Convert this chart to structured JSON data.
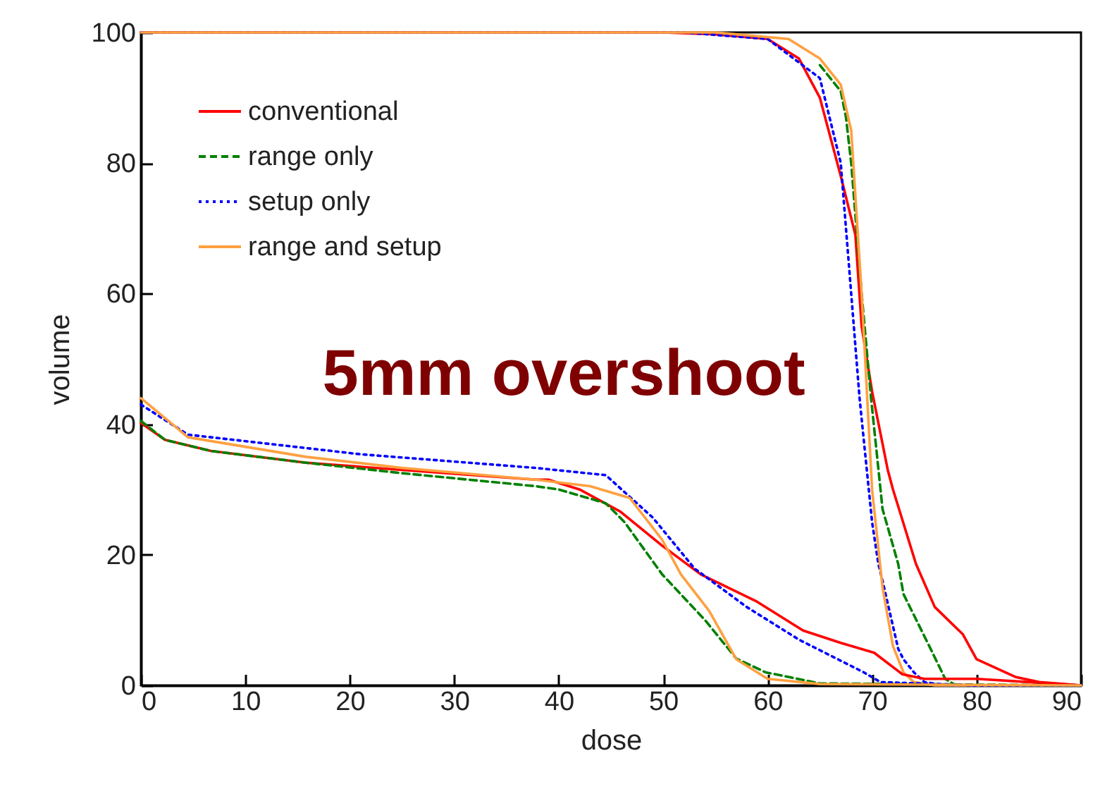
{
  "chart_data": {
    "type": "line",
    "xlabel": "dose",
    "ylabel": "volume",
    "xlim": [
      0,
      90
    ],
    "ylim": [
      0,
      100
    ],
    "xticks": [
      0,
      10,
      20,
      30,
      40,
      50,
      60,
      70,
      80,
      90
    ],
    "yticks": [
      0,
      20,
      40,
      60,
      80,
      100
    ],
    "grid": false,
    "legend": "top left",
    "marker": "none",
    "annotations": [
      "5mm overshoot"
    ],
    "series": [
      {
        "name": "conventional",
        "color": "#ff0000",
        "line_style": "solid",
        "x": [
          0,
          50,
          55,
          60,
          63,
          65,
          67,
          68.4,
          69,
          70,
          71.5,
          72,
          74.2,
          76,
          78.7,
          80,
          83.7,
          86,
          90
        ],
        "values": [
          100,
          100,
          99.7,
          99,
          96,
          90,
          78,
          69,
          55,
          45,
          33,
          30,
          18.6,
          12,
          7.8,
          4,
          1.3,
          0.5,
          0
        ]
      },
      {
        "name": "range only",
        "color": "#008000",
        "line_style": "dashed",
        "x": [
          65,
          67,
          67.5,
          68,
          69,
          69.9,
          71,
          72.5,
          73,
          75.6,
          77,
          78,
          90
        ],
        "values": [
          95,
          91,
          87,
          80,
          60,
          44,
          27,
          18.6,
          14,
          5.6,
          1,
          0,
          0
        ]
      },
      {
        "name": "setup only",
        "color": "#0000ff",
        "line_style": "dotted",
        "x": [
          0,
          52,
          60,
          65,
          67,
          67.5,
          68.8,
          70,
          70.6,
          71,
          72.5,
          73,
          74,
          75,
          77,
          90
        ],
        "values": [
          100,
          100,
          99,
          93,
          80,
          70,
          44,
          25,
          18.6,
          16,
          5.6,
          4,
          2,
          0.5,
          0,
          0
        ]
      },
      {
        "name": "range and setup",
        "color": "#ffa040",
        "line_style": "solid",
        "x": [
          0,
          55,
          62,
          65,
          67,
          68,
          69,
          70,
          71,
          72,
          73,
          74,
          76,
          90
        ],
        "values": [
          100,
          100,
          99,
          96,
          92,
          85,
          60,
          30,
          15,
          6,
          2,
          0.5,
          0,
          0
        ]
      },
      {
        "color": "#ff0000",
        "line_style": "solid",
        "x": [
          0,
          2.3,
          6.7,
          15.8,
          25,
          37.8,
          39,
          42,
          45.9,
          49.9,
          53.6,
          59,
          63.4,
          67,
          70.2,
          72.9,
          75,
          80,
          85,
          90
        ],
        "values": [
          40.2,
          37.6,
          35.9,
          34.1,
          33,
          31.5,
          31.5,
          30,
          26.6,
          21.4,
          17,
          12.8,
          8.4,
          6.5,
          5,
          1.7,
          1,
          1,
          0.5,
          0
        ]
      },
      {
        "color": "#008000",
        "line_style": "dashed",
        "x": [
          0,
          2.3,
          6.7,
          15.8,
          25,
          37.8,
          40,
          44.5,
          46.3,
          49.9,
          54,
          57,
          59.8,
          65,
          90
        ],
        "values": [
          40.5,
          37.6,
          35.9,
          34.1,
          32.5,
          30.5,
          30,
          27.9,
          25,
          17,
          10,
          4.1,
          2,
          0.3,
          0
        ]
      },
      {
        "color": "#0000ff",
        "line_style": "dotted",
        "x": [
          0,
          4.5,
          21,
          37.8,
          44.5,
          49,
          53,
          58,
          63,
          69.2,
          70.8,
          80,
          90
        ],
        "values": [
          43,
          38.4,
          35.4,
          33.3,
          32.2,
          25.7,
          17.9,
          12,
          7,
          2,
          0.5,
          0,
          0
        ]
      },
      {
        "color": "#ffa040",
        "line_style": "solid",
        "x": [
          0,
          4.5,
          15.8,
          25,
          37.8,
          43,
          46.8,
          49.9,
          51.7,
          54.4,
          57,
          60,
          65,
          90
        ],
        "values": [
          44,
          38,
          35,
          33.3,
          31.5,
          30.5,
          28.7,
          22.3,
          17,
          11.4,
          4,
          1,
          0.2,
          0
        ]
      }
    ]
  }
}
